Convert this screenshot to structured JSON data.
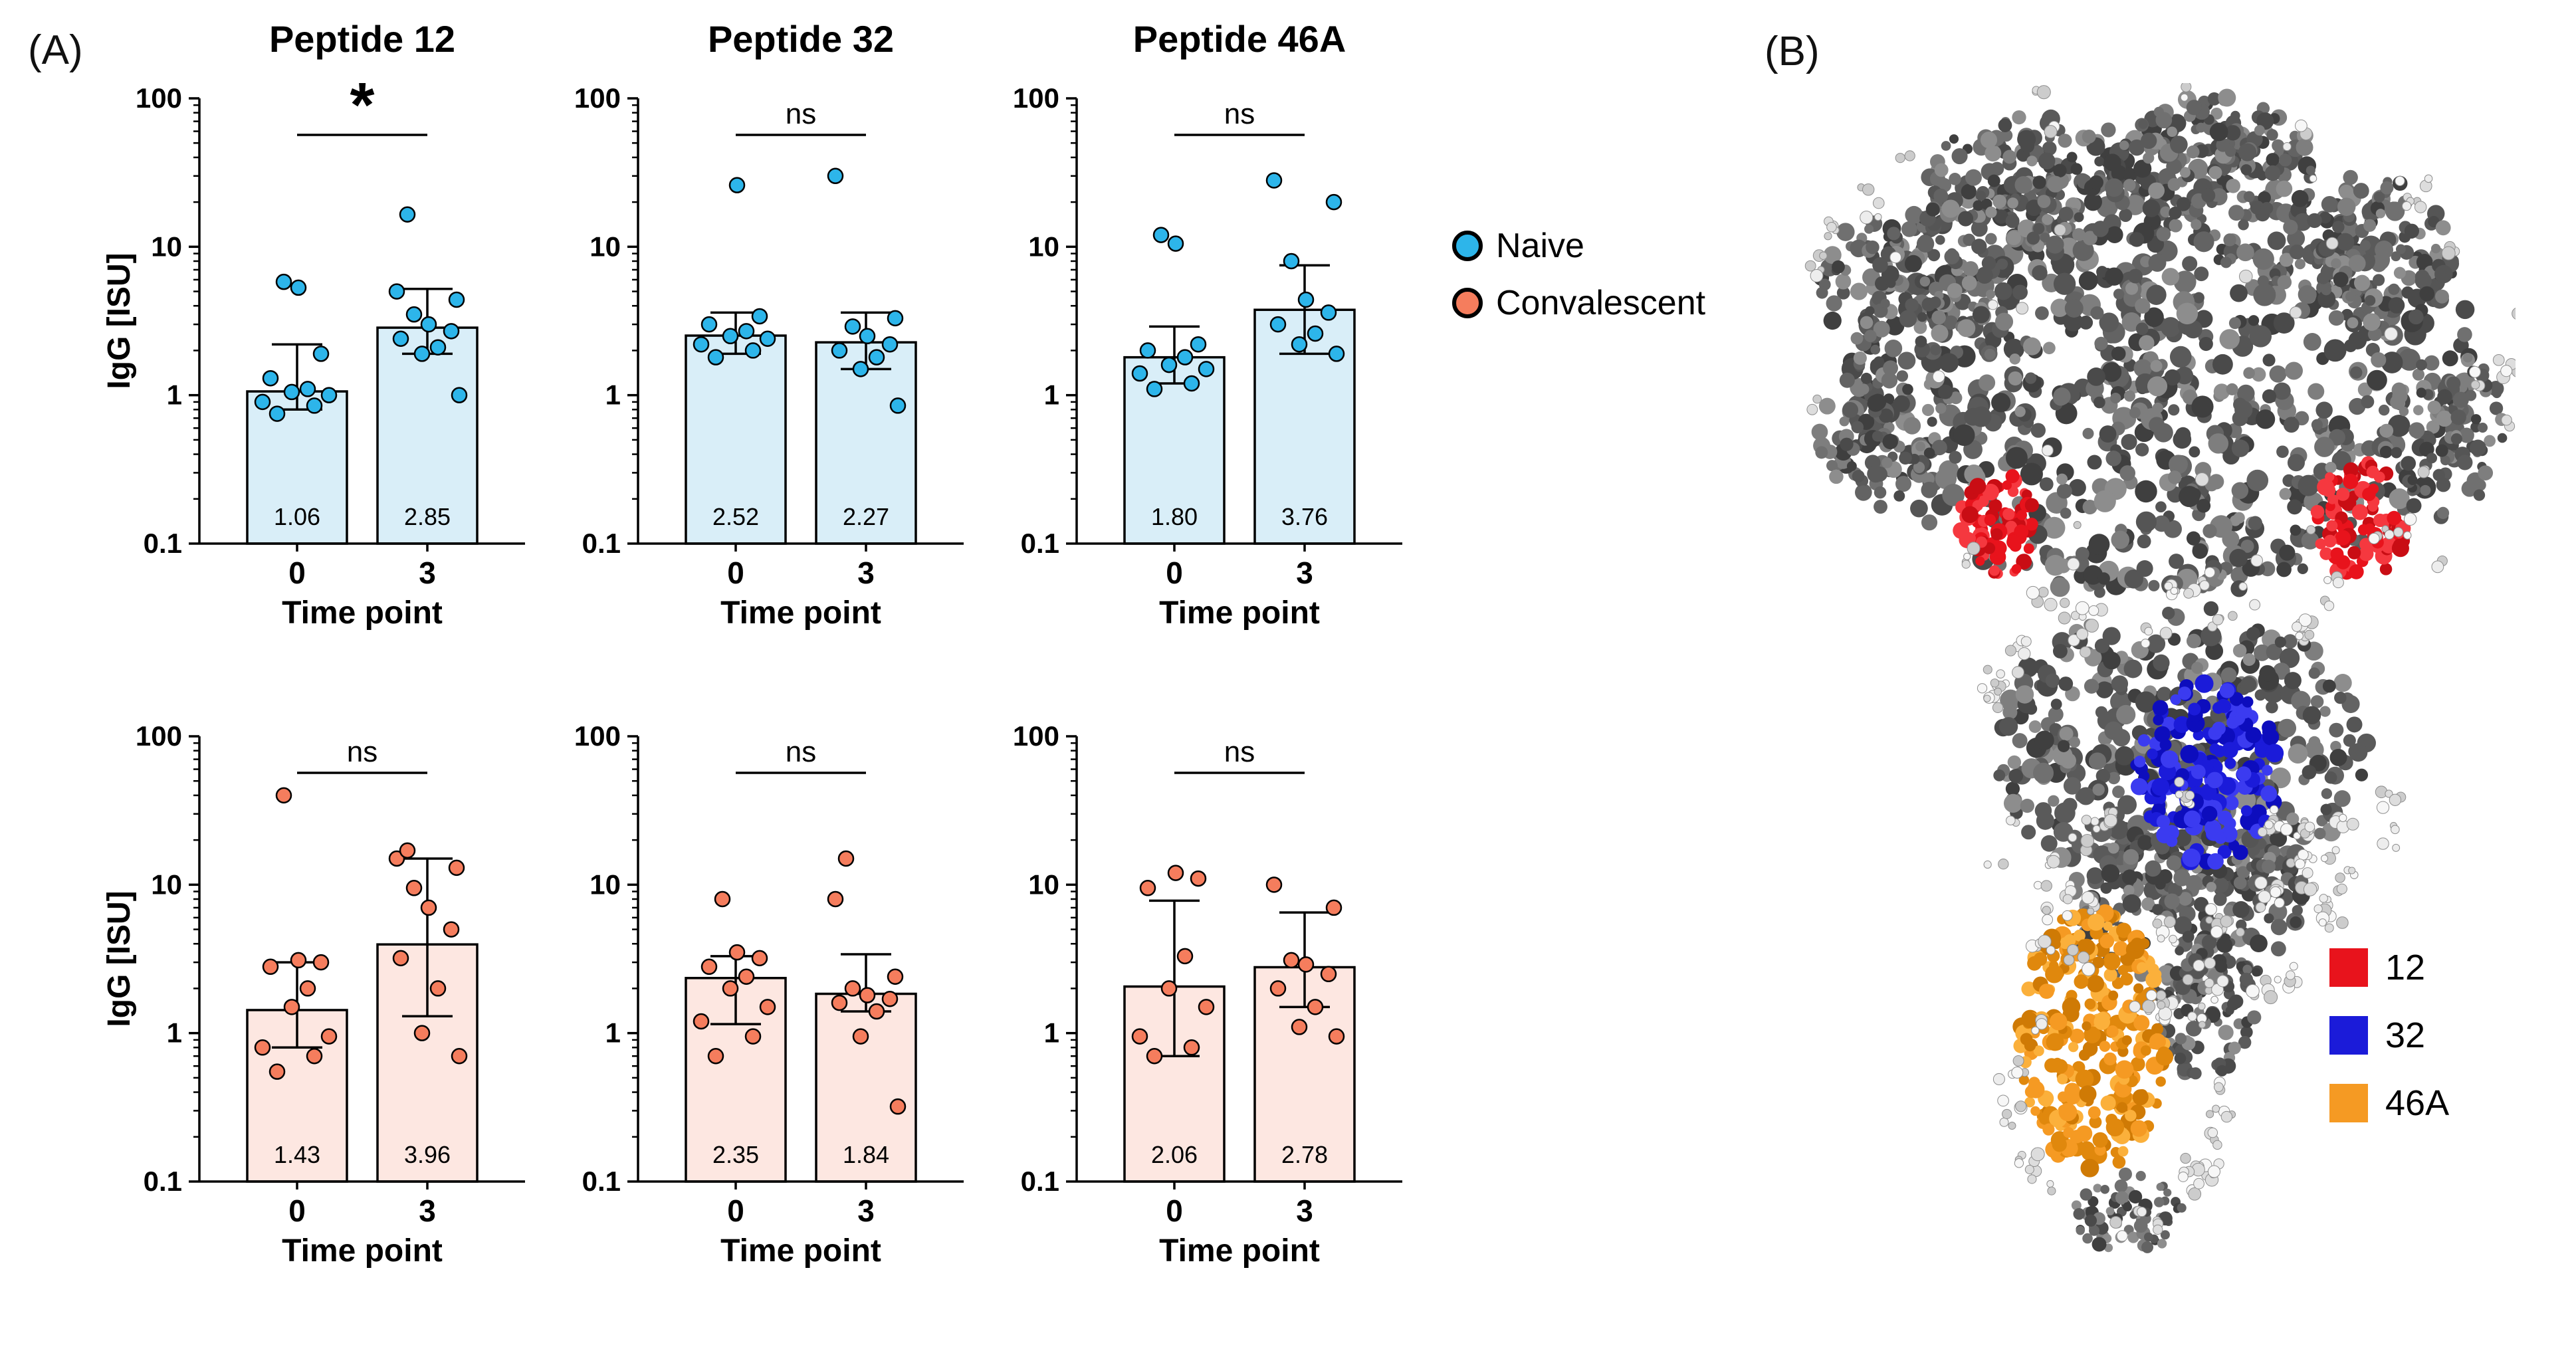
{
  "figure": {
    "panelA": {
      "label": "(A)",
      "xlabel": "Time point",
      "ylabel": "IgG [ISU]",
      "group_legend": [
        {
          "label": "Naive",
          "color": "#2db5ea"
        },
        {
          "label": "Convalescent",
          "color": "#f57d5d"
        }
      ]
    },
    "panelB": {
      "label": "(B)",
      "peptide_legend": [
        {
          "label": "12",
          "color": "#e8131c"
        },
        {
          "label": "32",
          "color": "#1b1bd9"
        },
        {
          "label": "46A",
          "color": "#f59a23"
        }
      ]
    }
  },
  "chart_data": [
    {
      "type": "bar",
      "title": "Peptide 12",
      "group": "Naive",
      "significance": "*",
      "categories": [
        "0",
        "3"
      ],
      "xlabel": "Time point",
      "ylabel": "IgG [ISU]",
      "show_ylabel": true,
      "log_scale": true,
      "ylim": [
        0.1,
        100
      ],
      "yticks": [
        "0.1",
        "1",
        "10",
        "100"
      ],
      "bar_values": [
        1.06,
        2.85
      ],
      "bar_labels": [
        "1.06",
        "2.85"
      ],
      "error_bars": [
        [
          0.8,
          2.2
        ],
        [
          1.9,
          5.2
        ]
      ],
      "points": [
        [
          0.75,
          0.85,
          0.9,
          1.0,
          1.05,
          1.1,
          1.3,
          1.9,
          5.3,
          5.8
        ],
        [
          1.0,
          1.9,
          2.1,
          2.4,
          2.7,
          3.0,
          3.5,
          4.4,
          5.0,
          16.5
        ]
      ],
      "point_color": "#2db5ea",
      "bar_fill": "#d9eef8"
    },
    {
      "type": "bar",
      "title": "Peptide 32",
      "group": "Naive",
      "significance": "ns",
      "categories": [
        "0",
        "3"
      ],
      "xlabel": "Time point",
      "ylabel": "IgG [ISU]",
      "show_ylabel": false,
      "log_scale": true,
      "ylim": [
        0.1,
        100
      ],
      "yticks": [
        "0.1",
        "1",
        "10",
        "100"
      ],
      "bar_values": [
        2.52,
        2.27
      ],
      "bar_labels": [
        "2.52",
        "2.27"
      ],
      "error_bars": [
        [
          1.9,
          3.6
        ],
        [
          1.5,
          3.6
        ]
      ],
      "points": [
        [
          1.8,
          2.0,
          2.2,
          2.4,
          2.5,
          2.7,
          3.0,
          3.4,
          26
        ],
        [
          0.85,
          1.5,
          1.8,
          2.0,
          2.2,
          2.5,
          2.9,
          3.3,
          30
        ]
      ],
      "point_color": "#2db5ea",
      "bar_fill": "#d9eef8"
    },
    {
      "type": "bar",
      "title": "Peptide 46A",
      "group": "Naive",
      "significance": "ns",
      "categories": [
        "0",
        "3"
      ],
      "xlabel": "Time point",
      "ylabel": "IgG [ISU]",
      "show_ylabel": false,
      "log_scale": true,
      "ylim": [
        0.1,
        100
      ],
      "yticks": [
        "0.1",
        "1",
        "10",
        "100"
      ],
      "bar_values": [
        1.8,
        3.76
      ],
      "bar_labels": [
        "1.80",
        "3.76"
      ],
      "error_bars": [
        [
          1.2,
          2.9
        ],
        [
          1.9,
          7.5
        ]
      ],
      "points": [
        [
          1.1,
          1.2,
          1.4,
          1.5,
          1.6,
          1.8,
          2.0,
          2.2,
          10.5,
          12
        ],
        [
          1.9,
          2.2,
          2.6,
          3.0,
          3.6,
          4.4,
          8.0,
          20,
          28
        ]
      ],
      "point_color": "#2db5ea",
      "bar_fill": "#d9eef8"
    },
    {
      "type": "bar",
      "title": "",
      "group": "Convalescent",
      "significance": "ns",
      "categories": [
        "0",
        "3"
      ],
      "xlabel": "Time point",
      "ylabel": "IgG [ISU]",
      "show_ylabel": true,
      "log_scale": true,
      "ylim": [
        0.1,
        100
      ],
      "yticks": [
        "0.1",
        "1",
        "10",
        "100"
      ],
      "bar_values": [
        1.43,
        3.96
      ],
      "bar_labels": [
        "1.43",
        "3.96"
      ],
      "error_bars": [
        [
          0.8,
          3.0
        ],
        [
          1.3,
          15
        ]
      ],
      "points": [
        [
          0.55,
          0.7,
          0.8,
          0.95,
          1.5,
          2.0,
          2.8,
          3.0,
          3.1,
          40
        ],
        [
          0.7,
          1.0,
          2.0,
          3.2,
          5.0,
          7.0,
          9.5,
          13,
          15,
          17
        ]
      ],
      "point_color": "#f57d5d",
      "bar_fill": "#fde7e1"
    },
    {
      "type": "bar",
      "title": "",
      "group": "Convalescent",
      "significance": "ns",
      "categories": [
        "0",
        "3"
      ],
      "xlabel": "Time point",
      "ylabel": "IgG [ISU]",
      "show_ylabel": false,
      "log_scale": true,
      "ylim": [
        0.1,
        100
      ],
      "yticks": [
        "0.1",
        "1",
        "10",
        "100"
      ],
      "bar_values": [
        2.35,
        1.84
      ],
      "bar_labels": [
        "2.35",
        "1.84"
      ],
      "error_bars": [
        [
          1.15,
          3.3
        ],
        [
          1.4,
          3.4
        ]
      ],
      "points": [
        [
          0.7,
          0.95,
          1.2,
          1.5,
          2.0,
          2.4,
          2.8,
          3.2,
          3.5,
          8.0
        ],
        [
          0.32,
          0.95,
          1.4,
          1.6,
          1.7,
          1.8,
          2.0,
          2.4,
          8.0,
          15
        ]
      ],
      "point_color": "#f57d5d",
      "bar_fill": "#fde7e1"
    },
    {
      "type": "bar",
      "title": "",
      "group": "Convalescent",
      "significance": "ns",
      "categories": [
        "0",
        "3"
      ],
      "xlabel": "Time point",
      "ylabel": "IgG [ISU]",
      "show_ylabel": false,
      "log_scale": true,
      "ylim": [
        0.1,
        100
      ],
      "yticks": [
        "0.1",
        "1",
        "10",
        "100"
      ],
      "bar_values": [
        2.06,
        2.78
      ],
      "bar_labels": [
        "2.06",
        "2.78"
      ],
      "error_bars": [
        [
          0.7,
          7.8
        ],
        [
          1.5,
          6.5
        ]
      ],
      "points": [
        [
          0.7,
          0.8,
          0.95,
          1.5,
          2.0,
          3.3,
          9.5,
          11,
          12
        ],
        [
          0.95,
          1.1,
          1.5,
          2.0,
          2.5,
          2.9,
          3.1,
          7.0,
          10
        ]
      ],
      "point_color": "#f57d5d",
      "bar_fill": "#fde7e1"
    }
  ]
}
